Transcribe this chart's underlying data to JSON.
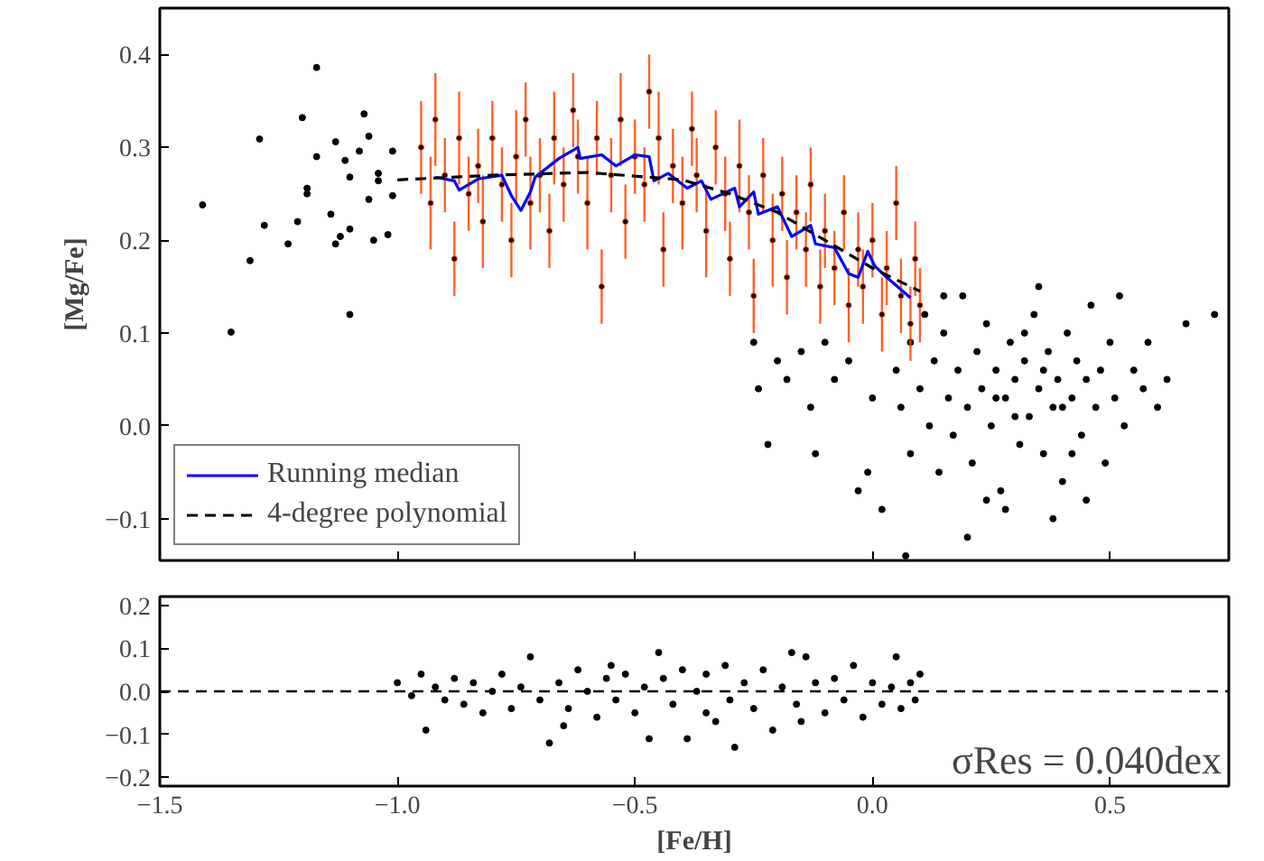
{
  "chart_data": [
    {
      "type": "scatter",
      "ylabel": "[Mg/Fe]",
      "xlim": [
        -1.5,
        0.75
      ],
      "ylim": [
        -0.145,
        0.45
      ],
      "tick_labels": "y",
      "legend": "bottom left",
      "xticks": [
        {
          "value": -1.5,
          "label": null
        },
        {
          "value": -1.0,
          "label": null
        },
        {
          "value": -0.5,
          "label": null
        },
        {
          "value": 0.0,
          "label": null
        },
        {
          "value": 0.5,
          "label": null
        }
      ],
      "yticks": [
        {
          "value": -0.1,
          "label": "−0.1"
        },
        {
          "value": 0.0,
          "label": "0.0"
        },
        {
          "value": 0.1,
          "label": "0.1"
        },
        {
          "value": 0.2,
          "label": "0.2"
        },
        {
          "value": 0.3,
          "label": "0.3"
        },
        {
          "value": 0.4,
          "label": "0.4"
        }
      ],
      "series": [
        {
          "marker": "circle",
          "color": "#000000",
          "x": [
            -1.41,
            -1.35,
            -1.31,
            -1.29,
            -1.28,
            -1.23,
            -1.21,
            -1.2,
            -1.19,
            -1.19,
            -1.17,
            -1.17,
            -1.14,
            -1.13,
            -1.13,
            -1.12,
            -1.11,
            -1.1,
            -1.1,
            -1.1,
            -1.08,
            -1.07,
            -1.06,
            -1.06,
            -1.05,
            -1.04,
            -1.04,
            -1.02,
            -1.01,
            -1.01,
            -0.25,
            -0.24,
            -0.2,
            -0.18,
            -0.15,
            -0.13,
            -0.1,
            -0.08,
            -0.05,
            -0.22,
            -0.12,
            -0.03,
            0.0,
            0.02,
            0.07,
            -0.01,
            0.05,
            0.06,
            0.08,
            0.08,
            0.1,
            0.11,
            0.12,
            0.13,
            0.14,
            0.15,
            0.16,
            0.17,
            0.18,
            0.19,
            0.2,
            0.21,
            0.22,
            0.23,
            0.24,
            0.25,
            0.26,
            0.27,
            0.28,
            0.29,
            0.3,
            0.31,
            0.32,
            0.33,
            0.34,
            0.35,
            0.36,
            0.37,
            0.38,
            0.39,
            0.4,
            0.41,
            0.42,
            0.43,
            0.44,
            0.45,
            0.46,
            0.47,
            0.48,
            0.49,
            0.5,
            0.51,
            0.52,
            0.53,
            0.55,
            0.57,
            0.58,
            0.6,
            0.62,
            0.66,
            0.72,
            0.38,
            0.28,
            0.2,
            0.45,
            0.35,
            0.15,
            0.24,
            0.32,
            0.42,
            0.3,
            0.4,
            0.36,
            0.26
          ],
          "values": [
            0.238,
            0.101,
            0.178,
            0.309,
            0.216,
            0.196,
            0.22,
            0.332,
            0.256,
            0.25,
            0.386,
            0.29,
            0.228,
            0.306,
            0.196,
            0.204,
            0.286,
            0.12,
            0.268,
            0.212,
            0.296,
            0.336,
            0.312,
            0.244,
            0.2,
            0.272,
            0.264,
            0.206,
            0.248,
            0.296,
            0.09,
            0.04,
            0.07,
            0.05,
            0.08,
            0.02,
            0.09,
            0.05,
            0.07,
            -0.02,
            -0.03,
            -0.07,
            0.03,
            -0.09,
            -0.14,
            -0.05,
            0.06,
            0.02,
            -0.03,
            0.09,
            0.04,
            0.12,
            0.0,
            0.07,
            -0.05,
            0.1,
            0.03,
            -0.01,
            0.06,
            0.14,
            0.02,
            -0.04,
            0.08,
            0.04,
            0.11,
            0.0,
            0.06,
            -0.07,
            0.03,
            0.09,
            0.05,
            -0.02,
            0.07,
            0.01,
            0.12,
            0.04,
            -0.03,
            0.08,
            0.02,
            0.05,
            -0.06,
            0.1,
            0.03,
            0.07,
            -0.01,
            0.05,
            0.13,
            0.02,
            0.06,
            -0.04,
            0.09,
            0.03,
            0.14,
            0.0,
            0.06,
            0.04,
            0.09,
            0.02,
            0.05,
            0.11,
            0.12,
            -0.1,
            -0.09,
            -0.12,
            -0.08,
            0.15,
            0.14,
            -0.08,
            0.1,
            -0.03,
            0.01,
            0.02,
            0.06,
            0.03
          ]
        },
        {
          "marker": "circle",
          "color": "#ff4500",
          "x": [
            -0.95,
            -0.93,
            -0.92,
            -0.9,
            -0.88,
            -0.87,
            -0.85,
            -0.83,
            -0.82,
            -0.8,
            -0.78,
            -0.76,
            -0.75,
            -0.73,
            -0.72,
            -0.7,
            -0.68,
            -0.67,
            -0.65,
            -0.63,
            -0.62,
            -0.6,
            -0.58,
            -0.57,
            -0.55,
            -0.53,
            -0.52,
            -0.5,
            -0.48,
            -0.47,
            -0.45,
            -0.44,
            -0.42,
            -0.4,
            -0.38,
            -0.37,
            -0.35,
            -0.33,
            -0.31,
            -0.3,
            -0.28,
            -0.26,
            -0.25,
            -0.23,
            -0.21,
            -0.19,
            -0.18,
            -0.16,
            -0.14,
            -0.13,
            -0.11,
            -0.1,
            -0.08,
            -0.06,
            -0.05,
            -0.03,
            -0.02,
            0.0,
            0.02,
            0.03,
            0.05,
            0.06,
            0.08,
            0.09,
            0.1
          ],
          "values": [
            0.3,
            0.24,
            0.33,
            0.27,
            0.18,
            0.31,
            0.25,
            0.28,
            0.22,
            0.31,
            0.26,
            0.2,
            0.29,
            0.33,
            0.24,
            0.27,
            0.21,
            0.31,
            0.26,
            0.34,
            0.29,
            0.24,
            0.31,
            0.15,
            0.27,
            0.33,
            0.22,
            0.29,
            0.26,
            0.36,
            0.31,
            0.19,
            0.28,
            0.24,
            0.32,
            0.27,
            0.21,
            0.3,
            0.25,
            0.18,
            0.28,
            0.23,
            0.14,
            0.27,
            0.2,
            0.25,
            0.16,
            0.23,
            0.19,
            0.26,
            0.15,
            0.21,
            0.17,
            0.23,
            0.13,
            0.19,
            0.15,
            0.2,
            0.12,
            0.17,
            0.24,
            0.14,
            0.11,
            0.18,
            0.13
          ],
          "errors": [
            0.05,
            0.05,
            0.05,
            0.04,
            0.04,
            0.05,
            0.04,
            0.04,
            0.05,
            0.04,
            0.04,
            0.04,
            0.05,
            0.04,
            0.05,
            0.04,
            0.04,
            0.05,
            0.04,
            0.04,
            0.04,
            0.05,
            0.04,
            0.04,
            0.04,
            0.05,
            0.04,
            0.04,
            0.04,
            0.04,
            0.05,
            0.04,
            0.04,
            0.05,
            0.04,
            0.04,
            0.05,
            0.04,
            0.04,
            0.04,
            0.05,
            0.04,
            0.04,
            0.04,
            0.05,
            0.04,
            0.04,
            0.04,
            0.04,
            0.04,
            0.04,
            0.04,
            0.04,
            0.04,
            0.04,
            0.04,
            0.04,
            0.04,
            0.04,
            0.04,
            0.04,
            0.04,
            0.04,
            0.04,
            0.04
          ]
        },
        {
          "type": "line",
          "name": "Running median",
          "color": "#0000ff",
          "x": [
            -0.92,
            -0.88,
            -0.87,
            -0.83,
            -0.78,
            -0.76,
            -0.74,
            -0.72,
            -0.71,
            -0.66,
            -0.62,
            -0.615,
            -0.57,
            -0.54,
            -0.5,
            -0.47,
            -0.46,
            -0.43,
            -0.39,
            -0.36,
            -0.34,
            -0.29,
            -0.28,
            -0.25,
            -0.24,
            -0.2,
            -0.17,
            -0.13,
            -0.12,
            -0.08,
            -0.05,
            -0.03,
            -0.01,
            0.005,
            0.03,
            0.08
          ],
          "values": [
            0.268,
            0.264,
            0.254,
            0.266,
            0.27,
            0.248,
            0.232,
            0.252,
            0.268,
            0.288,
            0.3,
            0.288,
            0.292,
            0.28,
            0.292,
            0.29,
            0.264,
            0.272,
            0.256,
            0.264,
            0.244,
            0.256,
            0.236,
            0.252,
            0.228,
            0.236,
            0.204,
            0.216,
            0.196,
            0.192,
            0.164,
            0.16,
            0.188,
            0.172,
            0.16,
            0.138
          ]
        },
        {
          "type": "line",
          "line_style": "dashed",
          "name": "4-degree polynomial",
          "color": "#000000",
          "x": [
            -1.0,
            -0.8,
            -0.6,
            -0.4,
            -0.3,
            -0.2,
            -0.1,
            0.0,
            0.1
          ],
          "values": [
            0.265,
            0.27,
            0.273,
            0.265,
            0.25,
            0.23,
            0.2,
            0.17,
            0.145
          ]
        }
      ]
    },
    {
      "type": "scatter",
      "xlabel": "[Fe/H]",
      "xlim": [
        -1.5,
        0.75
      ],
      "ylim": [
        -0.22,
        0.22
      ],
      "xticks": [
        {
          "value": -1.5,
          "label": "−1.5"
        },
        {
          "value": -1.0,
          "label": "−1.0"
        },
        {
          "value": -0.5,
          "label": "−0.5"
        },
        {
          "value": 0.0,
          "label": "0.0"
        },
        {
          "value": 0.5,
          "label": "0.5"
        }
      ],
      "yticks": [
        {
          "value": -0.2,
          "label": "−0.2"
        },
        {
          "value": -0.1,
          "label": "−0.1"
        },
        {
          "value": 0.0,
          "label": "0.0"
        },
        {
          "value": 0.1,
          "label": "0.1"
        },
        {
          "value": 0.2,
          "label": "0.2"
        }
      ],
      "ref_lines": [
        {
          "axis": "y",
          "value": 0.0,
          "color": "#000000",
          "line_style": "dashed"
        }
      ],
      "annotations": [
        "σRes = 0.040dex"
      ],
      "series": [
        {
          "marker": "circle",
          "color": "#000000",
          "x": [
            -1.0,
            -0.97,
            -0.95,
            -0.94,
            -0.92,
            -0.9,
            -0.88,
            -0.86,
            -0.84,
            -0.82,
            -0.8,
            -0.78,
            -0.76,
            -0.74,
            -0.72,
            -0.7,
            -0.68,
            -0.66,
            -0.64,
            -0.62,
            -0.6,
            -0.58,
            -0.56,
            -0.54,
            -0.52,
            -0.5,
            -0.48,
            -0.47,
            -0.45,
            -0.44,
            -0.42,
            -0.4,
            -0.39,
            -0.37,
            -0.35,
            -0.33,
            -0.31,
            -0.3,
            -0.29,
            -0.27,
            -0.25,
            -0.23,
            -0.21,
            -0.19,
            -0.17,
            -0.16,
            -0.14,
            -0.12,
            -0.1,
            -0.08,
            -0.06,
            -0.04,
            -0.02,
            0.0,
            0.02,
            0.04,
            0.05,
            0.06,
            0.08,
            0.09,
            0.1,
            -0.55,
            -0.35,
            -0.15,
            -0.65
          ],
          "values": [
            0.02,
            -0.01,
            0.04,
            -0.09,
            0.01,
            -0.02,
            0.03,
            -0.03,
            0.02,
            -0.05,
            0.0,
            0.04,
            -0.04,
            0.01,
            0.08,
            -0.02,
            -0.12,
            0.02,
            -0.04,
            0.05,
            0.0,
            -0.06,
            0.03,
            -0.02,
            0.04,
            -0.05,
            0.01,
            -0.11,
            0.09,
            0.03,
            -0.03,
            0.05,
            -0.11,
            0.0,
            0.04,
            -0.07,
            0.06,
            -0.02,
            -0.13,
            0.02,
            -0.04,
            0.05,
            -0.09,
            0.01,
            0.09,
            -0.03,
            0.08,
            0.02,
            -0.05,
            0.03,
            -0.02,
            0.06,
            -0.06,
            0.02,
            -0.03,
            0.01,
            0.08,
            -0.04,
            0.02,
            -0.02,
            0.04,
            0.06,
            -0.05,
            -0.07,
            -0.08
          ]
        }
      ]
    }
  ]
}
